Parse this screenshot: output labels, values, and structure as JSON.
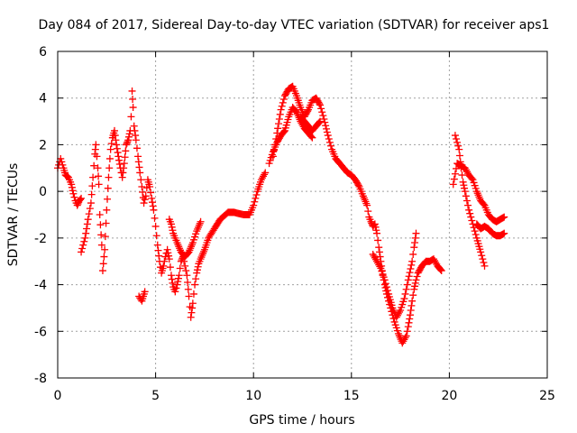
{
  "chart_data": {
    "type": "scatter",
    "title": "Day 084 of 2017, Sidereal Day-to-day VTEC variation (SDTVAR) for receiver aps1",
    "xlabel": "GPS time / hours",
    "ylabel": "SDTVAR / TECUs",
    "xlim": [
      0,
      25
    ],
    "ylim": [
      -8,
      6
    ],
    "xticks": [
      "0",
      "5",
      "10",
      "15",
      "20",
      "25"
    ],
    "yticks": [
      "-8",
      "-6",
      "-4",
      "-2",
      "0",
      "2",
      "4",
      "6"
    ],
    "grid": true,
    "marker": "+",
    "series": [
      {
        "name": "SDTVAR",
        "color": "#ff0000",
        "segments": [
          [
            [
              0.0,
              1.0
            ],
            [
              0.15,
              1.4
            ],
            [
              0.3,
              1.0
            ],
            [
              0.4,
              0.7
            ],
            [
              0.55,
              0.6
            ],
            [
              0.7,
              0.3
            ],
            [
              0.8,
              -0.1
            ],
            [
              0.9,
              -0.4
            ],
            [
              1.0,
              -0.6
            ],
            [
              1.1,
              -0.4
            ],
            [
              1.2,
              -0.3
            ]
          ],
          [
            [
              1.2,
              -2.6
            ],
            [
              1.4,
              -2.0
            ],
            [
              1.55,
              -1.2
            ],
            [
              1.7,
              -0.5
            ],
            [
              1.8,
              0.6
            ],
            [
              1.9,
              1.6
            ],
            [
              1.95,
              2.0
            ],
            [
              2.05,
              1.0
            ],
            [
              2.1,
              0.3
            ],
            [
              2.15,
              -1.0
            ],
            [
              2.25,
              -2.3
            ],
            [
              2.3,
              -3.4
            ],
            [
              2.4,
              -2.5
            ],
            [
              2.5,
              -0.8
            ],
            [
              2.6,
              0.6
            ],
            [
              2.7,
              1.8
            ],
            [
              2.8,
              2.3
            ],
            [
              2.9,
              2.6
            ],
            [
              3.0,
              2.0
            ],
            [
              3.1,
              1.5
            ],
            [
              3.2,
              1.0
            ],
            [
              3.3,
              0.6
            ],
            [
              3.4,
              1.2
            ],
            [
              3.5,
              2.0
            ],
            [
              3.6,
              2.2
            ],
            [
              3.7,
              2.6
            ],
            [
              3.75,
              3.2
            ],
            [
              3.8,
              4.3
            ],
            [
              3.85,
              3.6
            ],
            [
              3.9,
              2.8
            ],
            [
              4.0,
              2.2
            ],
            [
              4.1,
              1.5
            ],
            [
              4.2,
              0.8
            ],
            [
              4.3,
              0.2
            ],
            [
              4.4,
              -0.5
            ],
            [
              4.5,
              -0.2
            ],
            [
              4.6,
              0.5
            ],
            [
              4.7,
              0.2
            ],
            [
              4.8,
              -0.3
            ],
            [
              4.9,
              -0.8
            ],
            [
              5.0,
              -1.5
            ],
            [
              5.1,
              -2.3
            ],
            [
              5.2,
              -3.0
            ],
            [
              5.3,
              -3.5
            ],
            [
              5.4,
              -3.2
            ],
            [
              5.5,
              -2.8
            ],
            [
              5.6,
              -2.5
            ],
            [
              5.7,
              -2.9
            ],
            [
              5.8,
              -3.6
            ],
            [
              5.9,
              -4.1
            ],
            [
              6.0,
              -4.3
            ],
            [
              6.1,
              -4.0
            ],
            [
              6.2,
              -3.6
            ],
            [
              6.3,
              -3.0
            ],
            [
              6.4,
              -2.8
            ],
            [
              6.5,
              -3.2
            ],
            [
              6.6,
              -3.6
            ],
            [
              6.7,
              -4.5
            ],
            [
              6.8,
              -5.4
            ],
            [
              6.9,
              -4.8
            ],
            [
              7.0,
              -4.0
            ],
            [
              7.1,
              -3.5
            ],
            [
              7.2,
              -3.1
            ],
            [
              7.3,
              -2.9
            ],
            [
              7.5,
              -2.5
            ],
            [
              7.7,
              -2.0
            ],
            [
              8.0,
              -1.6
            ],
            [
              8.3,
              -1.2
            ],
            [
              8.7,
              -0.9
            ],
            [
              9.0,
              -0.9
            ],
            [
              9.5,
              -1.0
            ],
            [
              9.8,
              -1.0
            ],
            [
              10.0,
              -0.6
            ],
            [
              10.2,
              0.0
            ],
            [
              10.4,
              0.5
            ],
            [
              10.6,
              0.8
            ]
          ],
          [
            [
              4.15,
              -4.5
            ],
            [
              4.3,
              -4.7
            ],
            [
              4.45,
              -4.3
            ]
          ],
          [
            [
              5.7,
              -1.2
            ],
            [
              5.8,
              -1.4
            ],
            [
              5.9,
              -1.8
            ],
            [
              6.1,
              -2.2
            ],
            [
              6.3,
              -2.6
            ],
            [
              6.5,
              -2.8
            ],
            [
              6.7,
              -2.6
            ],
            [
              6.9,
              -2.2
            ],
            [
              7.1,
              -1.7
            ],
            [
              7.3,
              -1.3
            ]
          ],
          [
            [
              10.8,
              1.2
            ],
            [
              11.0,
              1.7
            ],
            [
              11.2,
              2.1
            ],
            [
              11.4,
              2.4
            ],
            [
              11.6,
              2.6
            ],
            [
              11.8,
              3.2
            ],
            [
              12.0,
              3.6
            ],
            [
              12.2,
              3.4
            ],
            [
              12.4,
              3.0
            ],
            [
              12.6,
              2.7
            ],
            [
              12.8,
              2.5
            ],
            [
              13.0,
              2.3
            ]
          ],
          [
            [
              11.0,
              1.5
            ],
            [
              11.2,
              2.5
            ],
            [
              11.4,
              3.5
            ],
            [
              11.6,
              4.1
            ],
            [
              11.8,
              4.4
            ],
            [
              12.0,
              4.5
            ],
            [
              12.2,
              4.1
            ],
            [
              12.4,
              3.6
            ],
            [
              12.6,
              3.2
            ],
            [
              12.8,
              3.5
            ],
            [
              13.0,
              3.9
            ],
            [
              13.2,
              4.0
            ],
            [
              13.4,
              3.7
            ],
            [
              13.6,
              3.1
            ],
            [
              13.8,
              2.4
            ],
            [
              14.0,
              1.8
            ],
            [
              14.2,
              1.4
            ],
            [
              14.4,
              1.2
            ],
            [
              14.6,
              1.0
            ],
            [
              14.8,
              0.8
            ],
            [
              15.0,
              0.7
            ],
            [
              15.2,
              0.5
            ],
            [
              15.4,
              0.2
            ],
            [
              15.6,
              -0.2
            ],
            [
              15.8,
              -0.6
            ],
            [
              15.9,
              -1.1
            ],
            [
              16.0,
              -1.3
            ],
            [
              16.1,
              -1.5
            ],
            [
              16.2,
              -1.4
            ],
            [
              16.3,
              -1.8
            ],
            [
              16.4,
              -2.4
            ],
            [
              16.5,
              -3.0
            ],
            [
              16.6,
              -3.6
            ],
            [
              16.7,
              -4.0
            ],
            [
              16.8,
              -4.4
            ],
            [
              17.0,
              -5.0
            ],
            [
              17.2,
              -5.6
            ],
            [
              17.4,
              -6.1
            ],
            [
              17.6,
              -6.5
            ],
            [
              17.8,
              -6.2
            ],
            [
              17.9,
              -5.8
            ],
            [
              18.0,
              -5.3
            ],
            [
              18.1,
              -4.7
            ],
            [
              18.2,
              -4.2
            ],
            [
              18.3,
              -3.8
            ],
            [
              18.4,
              -3.5
            ],
            [
              18.6,
              -3.2
            ],
            [
              18.8,
              -3.0
            ],
            [
              19.0,
              -3.0
            ],
            [
              19.2,
              -2.9
            ],
            [
              19.4,
              -3.2
            ],
            [
              19.6,
              -3.4
            ]
          ],
          [
            [
              12.4,
              3.2
            ],
            [
              12.6,
              3.0
            ],
            [
              12.8,
              2.8
            ],
            [
              13.0,
              2.6
            ],
            [
              13.2,
              2.8
            ],
            [
              13.4,
              3.0
            ]
          ],
          [
            [
              16.1,
              -2.7
            ],
            [
              16.3,
              -3.0
            ],
            [
              16.5,
              -3.3
            ],
            [
              16.7,
              -3.8
            ],
            [
              16.9,
              -4.4
            ],
            [
              17.1,
              -5.0
            ],
            [
              17.3,
              -5.4
            ],
            [
              17.5,
              -5.1
            ],
            [
              17.7,
              -4.6
            ],
            [
              17.9,
              -3.8
            ],
            [
              18.1,
              -3.0
            ],
            [
              18.2,
              -2.4
            ],
            [
              18.3,
              -1.8
            ]
          ],
          [
            [
              20.2,
              0.3
            ],
            [
              20.4,
              1.2
            ],
            [
              20.6,
              1.1
            ],
            [
              20.8,
              1.0
            ],
            [
              21.0,
              0.7
            ],
            [
              21.2,
              0.5
            ],
            [
              21.4,
              0.0
            ],
            [
              21.6,
              -0.4
            ],
            [
              21.8,
              -0.6
            ],
            [
              22.0,
              -1.0
            ],
            [
              22.2,
              -1.2
            ],
            [
              22.4,
              -1.3
            ],
            [
              22.6,
              -1.2
            ],
            [
              22.8,
              -1.1
            ]
          ],
          [
            [
              20.3,
              2.4
            ],
            [
              20.5,
              1.8
            ],
            [
              20.6,
              1.0
            ],
            [
              20.7,
              0.4
            ],
            [
              20.8,
              0.0
            ],
            [
              21.0,
              -0.8
            ],
            [
              21.2,
              -1.4
            ],
            [
              21.4,
              -2.0
            ],
            [
              21.6,
              -2.6
            ],
            [
              21.8,
              -3.2
            ]
          ],
          [
            [
              21.4,
              -1.4
            ],
            [
              21.6,
              -1.6
            ],
            [
              21.8,
              -1.5
            ],
            [
              22.0,
              -1.6
            ],
            [
              22.2,
              -1.8
            ],
            [
              22.4,
              -1.9
            ],
            [
              22.6,
              -1.9
            ],
            [
              22.8,
              -1.8
            ]
          ]
        ]
      }
    ]
  }
}
